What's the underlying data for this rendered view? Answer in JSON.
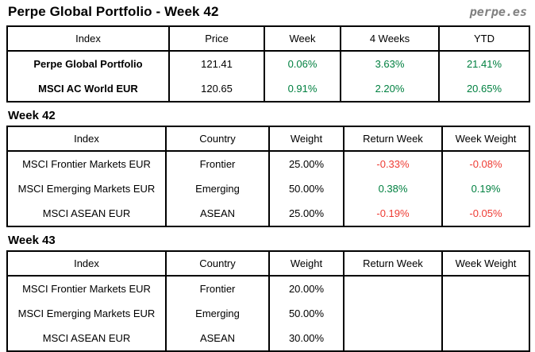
{
  "page": {
    "title": "Perpe Global Portfolio - Week 42",
    "logo": "perpe.es"
  },
  "colors": {
    "positive": "#008040",
    "negative": "#ee3b33",
    "logo": "#808080",
    "border": "#000000"
  },
  "summary_table": {
    "headers": [
      "Index",
      "Price",
      "Week",
      "4 Weeks",
      "YTD"
    ],
    "rows": [
      {
        "index": "Perpe Global Portfolio",
        "price": "121.41",
        "week": "0.06%",
        "week_class": "pos",
        "four_weeks": "3.63%",
        "four_weeks_class": "pos",
        "ytd": "21.41%",
        "ytd_class": "pos"
      },
      {
        "index": "MSCI AC World EUR",
        "price": "120.65",
        "week": "0.91%",
        "week_class": "pos",
        "four_weeks": "2.20%",
        "four_weeks_class": "pos",
        "ytd": "20.65%",
        "ytd_class": "pos"
      }
    ]
  },
  "week42": {
    "heading": "Week 42",
    "table": {
      "headers": [
        "Index",
        "Country",
        "Weight",
        "Return Week",
        "Week Weight"
      ],
      "rows": [
        {
          "index": "MSCI Frontier Markets EUR",
          "country": "Frontier",
          "weight": "25.00%",
          "return_week": "-0.33%",
          "return_week_class": "neg",
          "week_weight": "-0.08%",
          "week_weight_class": "neg"
        },
        {
          "index": "MSCI Emerging Markets EUR",
          "country": "Emerging",
          "weight": "50.00%",
          "return_week": "0.38%",
          "return_week_class": "pos",
          "week_weight": "0.19%",
          "week_weight_class": "pos"
        },
        {
          "index": "MSCI ASEAN EUR",
          "country": "ASEAN",
          "weight": "25.00%",
          "return_week": "-0.19%",
          "return_week_class": "neg",
          "week_weight": "-0.05%",
          "week_weight_class": "neg"
        }
      ]
    }
  },
  "week43": {
    "heading": "Week 43",
    "table": {
      "headers": [
        "Index",
        "Country",
        "Weight",
        "Return Week",
        "Week Weight"
      ],
      "rows": [
        {
          "index": "MSCI Frontier Markets EUR",
          "country": "Frontier",
          "weight": "20.00%",
          "return_week": "",
          "week_weight": ""
        },
        {
          "index": "MSCI Emerging Markets EUR",
          "country": "Emerging",
          "weight": "50.00%",
          "return_week": "",
          "week_weight": ""
        },
        {
          "index": "MSCI ASEAN EUR",
          "country": "ASEAN",
          "weight": "30.00%",
          "return_week": "",
          "week_weight": ""
        }
      ]
    }
  }
}
